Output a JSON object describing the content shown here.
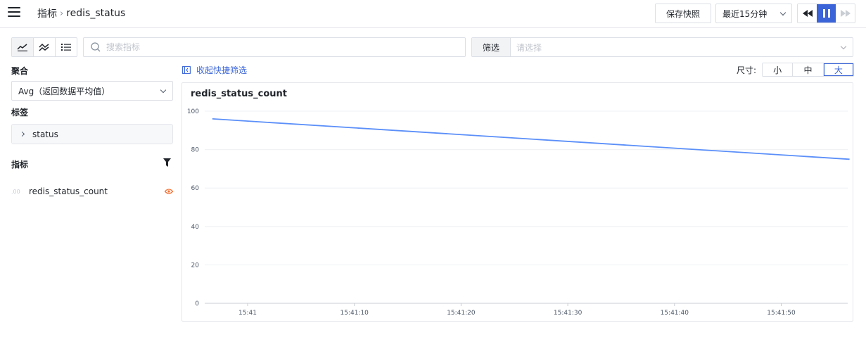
{
  "header": {
    "menu_icon": "hamburger-menu-icon",
    "breadcrumb_root": "指标",
    "breadcrumb_separator": "›",
    "breadcrumb_current": "redis_status",
    "save_snapshot_label": "保存快照",
    "time_range_value": "最近15分钟",
    "playback": {
      "active": "pause",
      "icons": [
        "rewind-icon",
        "pause-icon",
        "fast-forward-icon"
      ]
    }
  },
  "toolbar": {
    "view_modes": [
      "line-chart-icon",
      "multi-line-chart-icon",
      "list-icon"
    ],
    "active_view": 0,
    "search_placeholder": "搜索指标",
    "filter_label": "筛选",
    "filter_placeholder": "请选择"
  },
  "sidebar": {
    "aggregation_title": "聚合",
    "aggregation_value": "Avg（返回数据平均值）",
    "tags_title": "标签",
    "tag_item": "status",
    "metrics_title": "指标",
    "metric_prefix": ".00",
    "metric_name": "redis_status_count"
  },
  "panel_controls": {
    "collapse_label": "收起快捷筛选",
    "size_label": "尺寸:",
    "sizes": [
      "小",
      "中",
      "大"
    ],
    "active_size": 2
  },
  "colors": {
    "accent": "#3a64d8",
    "line": "#5b8ff9",
    "eye": "#f77234"
  },
  "chart_data": {
    "type": "line",
    "title": "redis_status_count",
    "x_tick_labels": [
      "15:41",
      "15:41:10",
      "15:41:20",
      "15:41:30",
      "15:41:40",
      "15:41:50"
    ],
    "x_tick_seconds": [
      0,
      10,
      20,
      30,
      40,
      50
    ],
    "ylim": [
      0,
      100
    ],
    "y_ticks": [
      0,
      20,
      40,
      60,
      80,
      100
    ],
    "grid": true,
    "series": [
      {
        "x_seconds": [
          -3.3,
          56.4
        ],
        "values": [
          96,
          75
        ]
      }
    ]
  }
}
